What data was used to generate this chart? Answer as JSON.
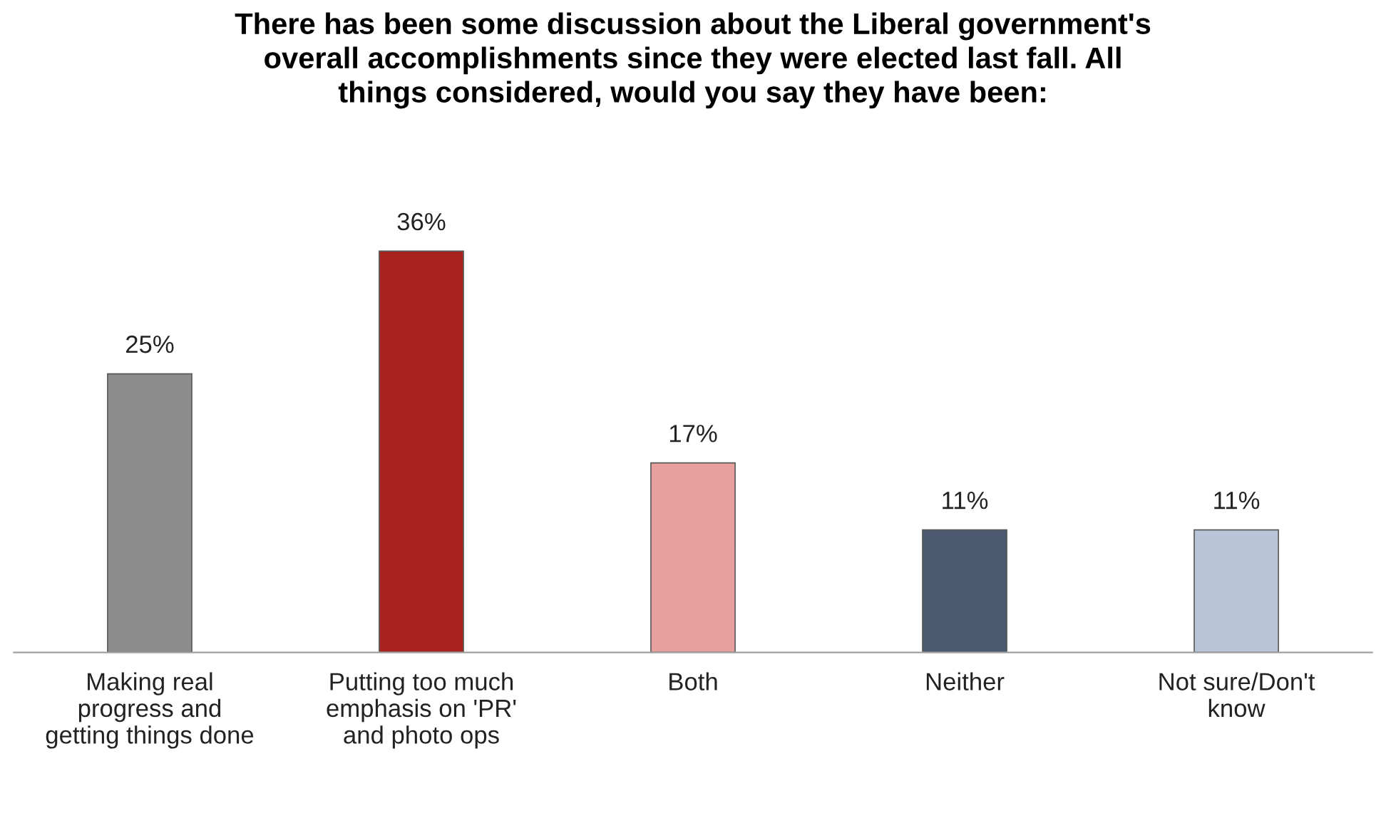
{
  "chart_data": {
    "type": "bar",
    "title": "There has been some discussion about the Liberal government's\noverall accomplishments since they were elected last fall. All\nthings considered, would you say they have been:",
    "categories": [
      "Making real\nprogress and\ngetting things done",
      "Putting too much\nemphasis on 'PR'\nand photo ops",
      "Both",
      "Neither",
      "Not sure/Don't\nknow"
    ],
    "values": [
      25,
      36,
      17,
      11,
      11
    ],
    "value_labels": [
      "25%",
      "36%",
      "17%",
      "11%",
      "11%"
    ],
    "colors": [
      "#8c8c8c",
      "#a8221e",
      "#e8a09e",
      "#4a5870",
      "#b8c4d8"
    ],
    "grid": false,
    "legend": false
  }
}
